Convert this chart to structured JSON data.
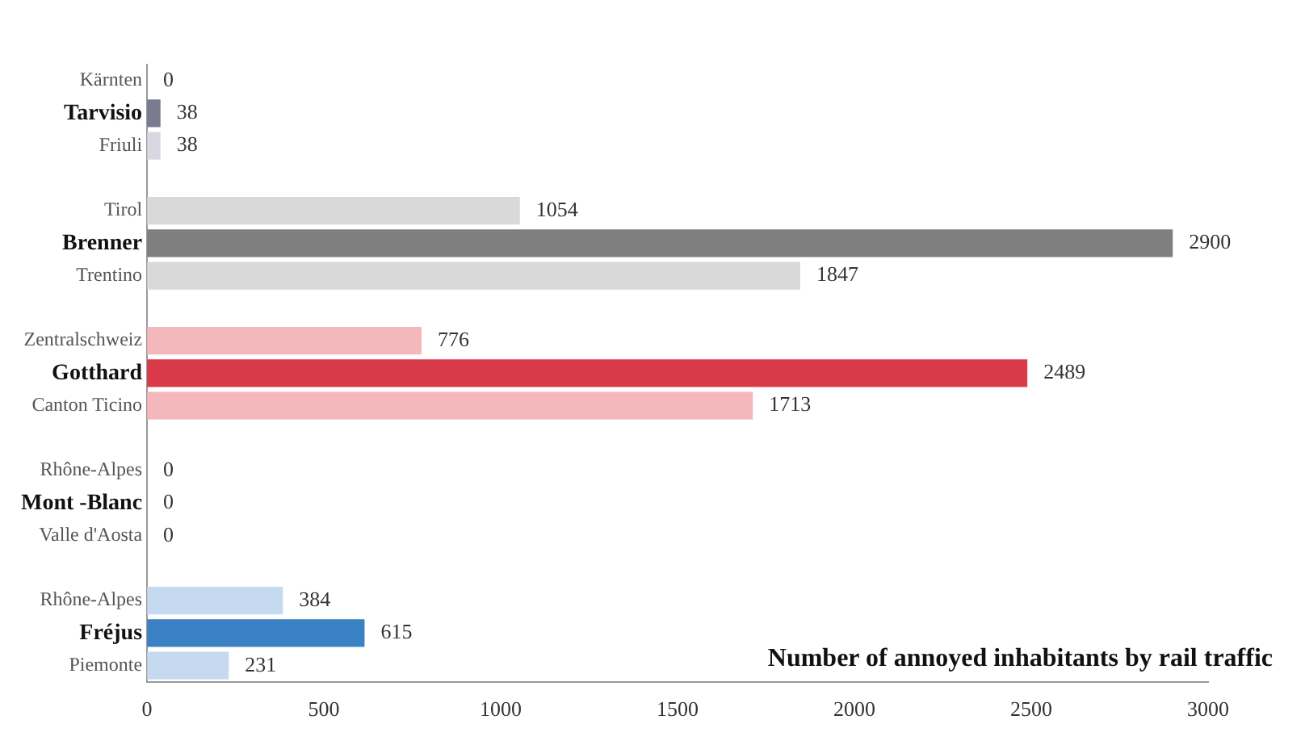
{
  "chart_data": {
    "type": "bar",
    "orientation": "horizontal",
    "title": "Number of annoyed inhabitants by rail traffic",
    "categories": [
      "Kärnten",
      "Tarvisio",
      "Friuli",
      null,
      "Tirol",
      "Brenner",
      "Trentino",
      null,
      "Zentralschweiz",
      "Gotthard",
      "Canton Ticino",
      null,
      "Rhône-Alpes",
      "Mont -Blanc",
      "Valle d'Aosta",
      null,
      "Rhône-Alpes",
      "Fréjus",
      "Piemonte"
    ],
    "values": [
      0,
      38,
      38,
      null,
      1054,
      2900,
      1847,
      null,
      776,
      2489,
      1713,
      null,
      0,
      0,
      0,
      null,
      384,
      615,
      231
    ],
    "colors": [
      "#d8d8e0",
      "#7a7a90",
      "#d8d8e0",
      "#ffffff",
      "#d9d9d9",
      "#7f7f7f",
      "#d9d9d9",
      "#ffffff",
      "#f4b8bc",
      "#d93a4a",
      "#f4b8bc",
      "#ffffff",
      "#c0c0c0",
      "#c0c0c0",
      "#c0c0c0",
      "#ffffff",
      "#c5d9f1",
      "#3a82c4",
      "#c5d9f1"
    ],
    "xlim": [
      0,
      3000
    ],
    "xticks": [
      0,
      500,
      1000,
      1500,
      2000,
      2500,
      3000
    ],
    "data_labels": true,
    "grid": false,
    "legend": false
  }
}
